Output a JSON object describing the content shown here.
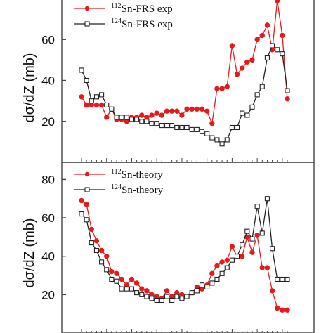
{
  "colors": {
    "red": "#e41a1c",
    "black": "#222222",
    "frame": "#444444"
  },
  "chart_data": [
    {
      "type": "line",
      "ylabel": "dσ/dZ (mb)",
      "ylim": [
        0,
        80
      ],
      "yticks": [
        20,
        40,
        60
      ],
      "xlim": [
        0,
        44
      ],
      "legend": "top-left",
      "series": [
        {
          "name": "Sn-FRS exp",
          "superscript": "112",
          "color": "#e41a1c",
          "marker": "filled-circle",
          "x": [
            3,
            4,
            5,
            6,
            7,
            8,
            9,
            10,
            11,
            12,
            13,
            14,
            15,
            16,
            17,
            18,
            19,
            20,
            21,
            22,
            23,
            24,
            25,
            26,
            27,
            28,
            29,
            30,
            31,
            32,
            33,
            34,
            35,
            36,
            37,
            38,
            39,
            40,
            41,
            42,
            43,
            44
          ],
          "y": [
            32,
            28,
            28,
            28,
            28,
            22,
            26,
            21,
            21,
            20,
            22,
            22,
            23,
            22,
            23,
            24,
            23,
            25,
            25,
            25,
            23,
            26,
            26,
            26,
            26,
            25,
            19,
            36,
            36,
            37,
            57,
            43,
            46,
            49,
            50,
            60,
            62,
            67,
            55,
            79,
            62,
            31
          ]
        },
        {
          "name": "Sn-FRS exp",
          "superscript": "124",
          "color": "#222222",
          "marker": "open-square",
          "x": [
            3,
            4,
            5,
            6,
            7,
            8,
            9,
            10,
            11,
            12,
            13,
            14,
            15,
            16,
            17,
            18,
            19,
            20,
            21,
            22,
            23,
            24,
            25,
            26,
            27,
            28,
            29,
            30,
            31,
            32,
            33,
            34,
            35,
            36,
            37,
            38,
            39,
            40,
            41,
            42,
            43,
            44
          ],
          "y": [
            45,
            40,
            30,
            32,
            33,
            28,
            26,
            22,
            22,
            22,
            21,
            21,
            20,
            20,
            19,
            19,
            18,
            18,
            18,
            17,
            17,
            17,
            16,
            16,
            15,
            14,
            12,
            11,
            9,
            11,
            17,
            17,
            24,
            23,
            27,
            33,
            37,
            51,
            57,
            55,
            53,
            35
          ]
        }
      ]
    },
    {
      "type": "line",
      "ylabel": "dσ/dZ (mb)",
      "ylim": [
        0,
        80
      ],
      "yticks": [
        20,
        40,
        60,
        80
      ],
      "xlim": [
        0,
        44
      ],
      "legend": "top-left",
      "series": [
        {
          "name": "Sn-theory",
          "superscript": "112",
          "color": "#e41a1c",
          "marker": "filled-circle",
          "x": [
            3,
            4,
            5,
            6,
            7,
            8,
            9,
            10,
            11,
            12,
            13,
            14,
            15,
            16,
            17,
            18,
            19,
            20,
            21,
            22,
            23,
            24,
            25,
            26,
            27,
            28,
            29,
            30,
            31,
            32,
            33,
            34,
            35,
            36,
            37,
            38,
            39,
            40,
            41,
            42,
            43,
            44
          ],
          "y": [
            69,
            67,
            54,
            48,
            43,
            40,
            32,
            31,
            28,
            25,
            28,
            26,
            23,
            22,
            20,
            19,
            18,
            22,
            19,
            21,
            20,
            19,
            21,
            24,
            23,
            25,
            31,
            35,
            37,
            38,
            45,
            40,
            40,
            50,
            42,
            51,
            34,
            34,
            22,
            13,
            12,
            12
          ]
        },
        {
          "name": "Sn-theory",
          "superscript": "124",
          "color": "#222222",
          "marker": "open-square",
          "x": [
            3,
            4,
            5,
            6,
            7,
            8,
            9,
            10,
            11,
            12,
            13,
            14,
            15,
            16,
            17,
            18,
            19,
            20,
            21,
            22,
            23,
            24,
            25,
            26,
            27,
            28,
            29,
            30,
            31,
            32,
            33,
            34,
            35,
            36,
            37,
            38,
            39,
            40,
            41,
            42,
            43,
            44
          ],
          "y": [
            62,
            59,
            47,
            43,
            37,
            33,
            28,
            27,
            23,
            23,
            23,
            21,
            20,
            19,
            18,
            17,
            17,
            19,
            17,
            19,
            18,
            19,
            21,
            22,
            25,
            24,
            26,
            28,
            31,
            34,
            38,
            40,
            46,
            53,
            49,
            66,
            52,
            70,
            44,
            28,
            28,
            28
          ]
        }
      ]
    }
  ]
}
